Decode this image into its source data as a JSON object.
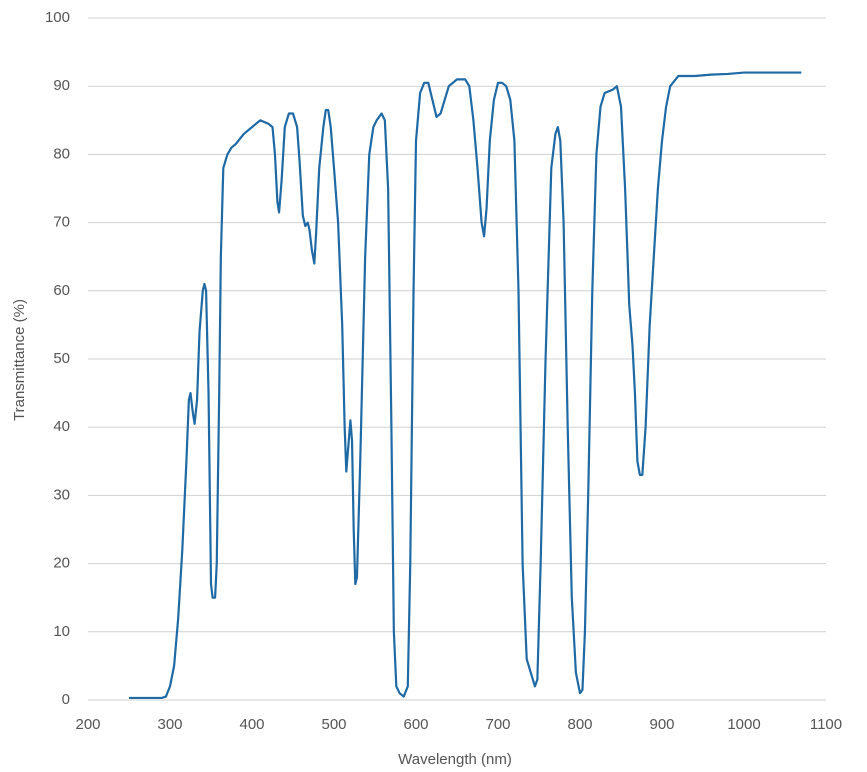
{
  "chart_data": {
    "type": "line",
    "x_label": "Wavelength (nm)",
    "y_label": "Transmittance (%)",
    "x": [
      250,
      270,
      290,
      295,
      300,
      305,
      310,
      315,
      320,
      323,
      325,
      328,
      330,
      333,
      336,
      340,
      342,
      344,
      347,
      350,
      352,
      355,
      357,
      360,
      362,
      365,
      370,
      375,
      380,
      390,
      400,
      410,
      420,
      425,
      428,
      431,
      433,
      436,
      440,
      445,
      450,
      455,
      458,
      462,
      465,
      468,
      470,
      473,
      476,
      478,
      482,
      487,
      490,
      493,
      496,
      500,
      505,
      510,
      513,
      515,
      518,
      520,
      522,
      524,
      526,
      528,
      532,
      538,
      543,
      548,
      552,
      558,
      562,
      566,
      570,
      573,
      576,
      580,
      585,
      590,
      593,
      597,
      600,
      605,
      610,
      615,
      620,
      625,
      630,
      640,
      650,
      660,
      665,
      670,
      675,
      680,
      683,
      686,
      690,
      695,
      700,
      705,
      710,
      715,
      720,
      725,
      730,
      735,
      740,
      745,
      748,
      752,
      758,
      765,
      770,
      773,
      776,
      780,
      785,
      790,
      795,
      800,
      803,
      806,
      810,
      815,
      820,
      825,
      830,
      840,
      845,
      850,
      855,
      858,
      860,
      862,
      864,
      867,
      870,
      873,
      876,
      880,
      885,
      890,
      895,
      900,
      905,
      910,
      920,
      940,
      960,
      980,
      1000,
      1020,
      1040,
      1060,
      1070
    ],
    "values": [
      0.3,
      0.3,
      0.3,
      0.5,
      2,
      5,
      12,
      22,
      35,
      44,
      45,
      42,
      40.5,
      44,
      54,
      60,
      61,
      60,
      45,
      17,
      15,
      15,
      20,
      45,
      65,
      78,
      80,
      81,
      81.5,
      83,
      84,
      85,
      84.5,
      84,
      80,
      73,
      71.5,
      76,
      84,
      86,
      86,
      84,
      79,
      71,
      69.5,
      70,
      69,
      66,
      64,
      68,
      78,
      84,
      86.5,
      86.5,
      84,
      78,
      70,
      55,
      40,
      33.5,
      38,
      41,
      38,
      25,
      17,
      18,
      35,
      65,
      80,
      84,
      85,
      86,
      85,
      75,
      40,
      10,
      2,
      1,
      0.5,
      2,
      20,
      60,
      82,
      89,
      90.5,
      90.5,
      88,
      85.5,
      86,
      90,
      91,
      91,
      90,
      85,
      78,
      70,
      68,
      72,
      82,
      88,
      90.5,
      90.5,
      90,
      88,
      82,
      60,
      20,
      6,
      4,
      2,
      3,
      20,
      50,
      78,
      83,
      84,
      82,
      70,
      40,
      15,
      4,
      1,
      1.5,
      10,
      30,
      60,
      80,
      87,
      89,
      89.5,
      90,
      87,
      75,
      65,
      58,
      55,
      52,
      45,
      35,
      33,
      33,
      40,
      55,
      65,
      75,
      82,
      87,
      90,
      91.5,
      91.5,
      91.7,
      91.8,
      92,
      92,
      92,
      92,
      92
    ],
    "color": "#1f6aa5",
    "xlim": [
      200,
      1100
    ],
    "xticks": [
      200,
      300,
      400,
      500,
      600,
      700,
      800,
      900,
      1000,
      1100
    ],
    "ylim": [
      0,
      100
    ],
    "yticks": [
      0,
      10,
      20,
      30,
      40,
      50,
      60,
      70,
      80,
      90,
      100
    ],
    "grid": true
  }
}
